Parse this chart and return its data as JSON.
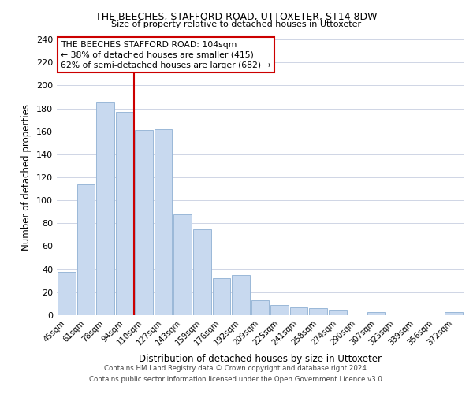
{
  "title1": "THE BEECHES, STAFFORD ROAD, UTTOXETER, ST14 8DW",
  "title2": "Size of property relative to detached houses in Uttoxeter",
  "xlabel": "Distribution of detached houses by size in Uttoxeter",
  "ylabel": "Number of detached properties",
  "bar_labels": [
    "45sqm",
    "61sqm",
    "78sqm",
    "94sqm",
    "110sqm",
    "127sqm",
    "143sqm",
    "159sqm",
    "176sqm",
    "192sqm",
    "209sqm",
    "225sqm",
    "241sqm",
    "258sqm",
    "274sqm",
    "290sqm",
    "307sqm",
    "323sqm",
    "339sqm",
    "356sqm",
    "372sqm"
  ],
  "bar_values": [
    38,
    114,
    185,
    177,
    161,
    162,
    88,
    75,
    32,
    35,
    13,
    9,
    7,
    6,
    4,
    0,
    3,
    0,
    0,
    0,
    3
  ],
  "bar_color": "#c8d9ef",
  "bar_edge_color": "#9ab8d8",
  "vline_pos": 3.5,
  "vline_color": "#cc0000",
  "annotation_title": "THE BEECHES STAFFORD ROAD: 104sqm",
  "annotation_line1": "← 38% of detached houses are smaller (415)",
  "annotation_line2": "62% of semi-detached houses are larger (682) →",
  "annotation_box_color": "#ffffff",
  "annotation_box_edge": "#cc0000",
  "ylim": [
    0,
    240
  ],
  "yticks": [
    0,
    20,
    40,
    60,
    80,
    100,
    120,
    140,
    160,
    180,
    200,
    220,
    240
  ],
  "footer1": "Contains HM Land Registry data © Crown copyright and database right 2024.",
  "footer2": "Contains public sector information licensed under the Open Government Licence v3.0.",
  "background_color": "#ffffff",
  "grid_color": "#c8cfe0"
}
